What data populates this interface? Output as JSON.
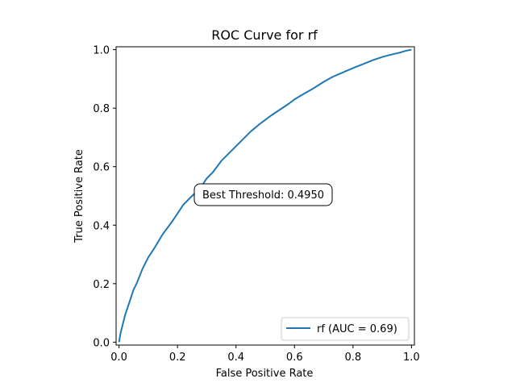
{
  "chart_data": {
    "type": "line",
    "title": "ROC Curve for rf",
    "xlabel": "False Positive Rate",
    "ylabel": "True Positive Rate",
    "xlim": [
      -0.01,
      1.01
    ],
    "ylim": [
      -0.01,
      1.01
    ],
    "xticks": [
      0.0,
      0.2,
      0.4,
      0.6,
      0.8,
      1.0
    ],
    "yticks": [
      0.0,
      0.2,
      0.4,
      0.6,
      0.8,
      1.0
    ],
    "xtick_labels": [
      "0.0",
      "0.2",
      "0.4",
      "0.6",
      "0.8",
      "1.0"
    ],
    "ytick_labels": [
      "0.0",
      "0.2",
      "0.4",
      "0.6",
      "0.8",
      "1.0"
    ],
    "grid": false,
    "legend_position": "lower-right",
    "annotation": "Best Threshold: 0.4950",
    "series": [
      {
        "name": "rf (AUC = 0.69)",
        "color": "#1f77b4",
        "x": [
          0.0,
          0.005,
          0.01,
          0.02,
          0.03,
          0.04,
          0.05,
          0.06,
          0.08,
          0.1,
          0.12,
          0.15,
          0.18,
          0.2,
          0.22,
          0.25,
          0.28,
          0.3,
          0.32,
          0.35,
          0.38,
          0.4,
          0.42,
          0.45,
          0.48,
          0.5,
          0.52,
          0.55,
          0.58,
          0.6,
          0.63,
          0.66,
          0.7,
          0.73,
          0.76,
          0.8,
          0.84,
          0.87,
          0.9,
          0.93,
          0.96,
          0.98,
          1.0
        ],
        "y": [
          0.0,
          0.03,
          0.05,
          0.09,
          0.12,
          0.15,
          0.18,
          0.2,
          0.25,
          0.29,
          0.32,
          0.37,
          0.41,
          0.44,
          0.47,
          0.5,
          0.53,
          0.56,
          0.58,
          0.62,
          0.65,
          0.67,
          0.69,
          0.72,
          0.745,
          0.76,
          0.775,
          0.795,
          0.815,
          0.83,
          0.848,
          0.865,
          0.89,
          0.907,
          0.92,
          0.937,
          0.953,
          0.965,
          0.975,
          0.983,
          0.99,
          0.996,
          1.0
        ]
      }
    ]
  }
}
